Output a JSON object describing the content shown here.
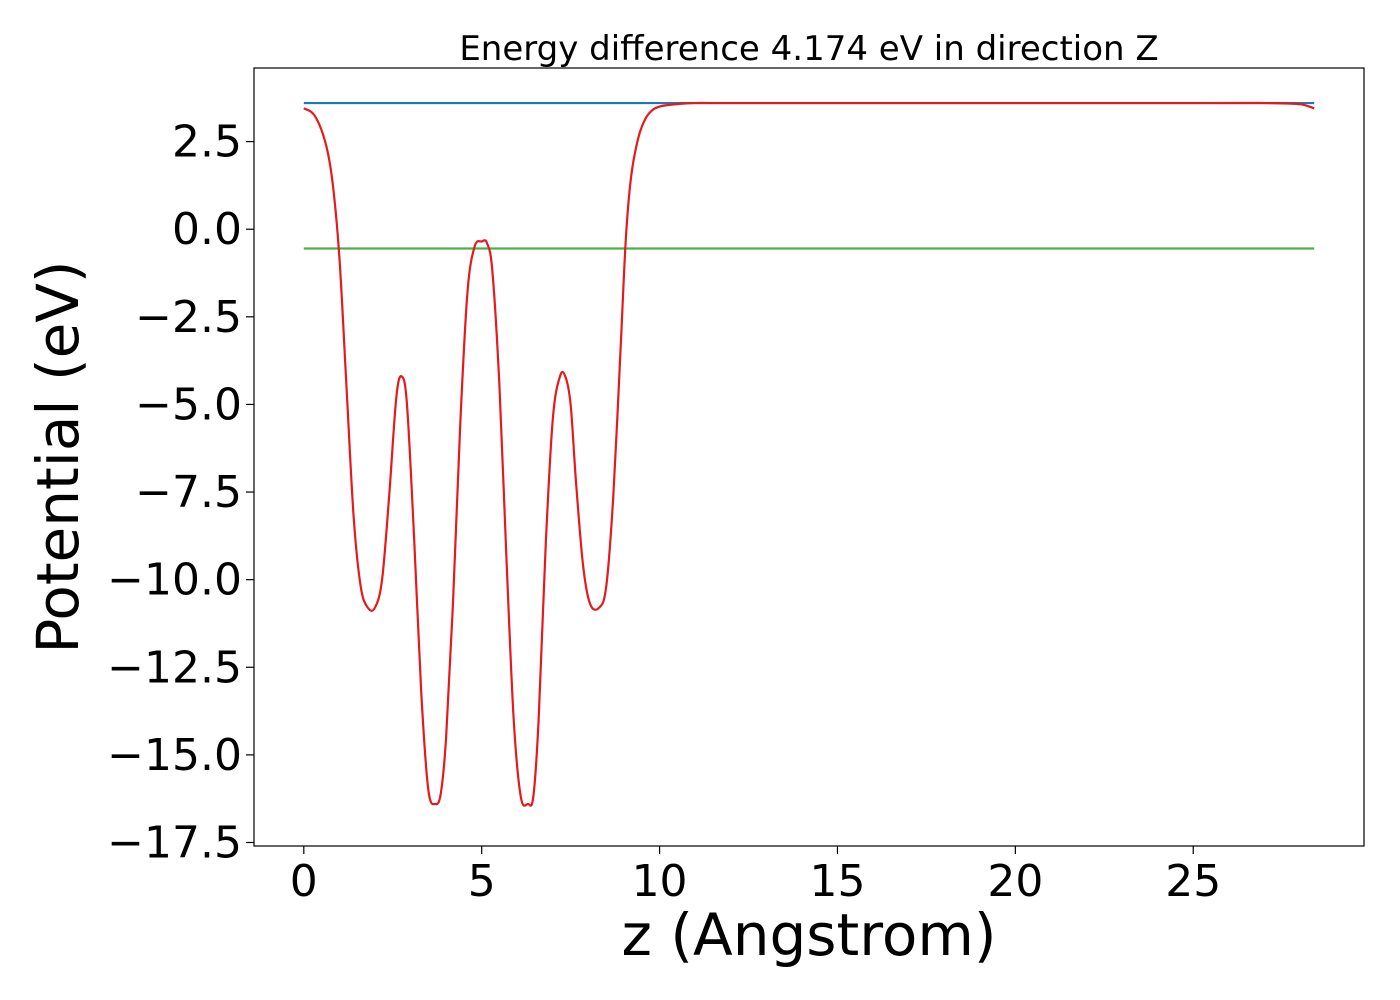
{
  "chart_data": {
    "type": "line",
    "title": "Energy difference 4.174 eV in direction Z",
    "xlabel": "z (Angstrom)",
    "ylabel": "Potential (eV)",
    "xlim": [
      -1.4,
      29.8
    ],
    "ylim": [
      -17.6,
      4.6
    ],
    "xticks": [
      0,
      5,
      10,
      15,
      20,
      25
    ],
    "xtick_labels": [
      "0",
      "5",
      "10",
      "15",
      "20",
      "25"
    ],
    "yticks": [
      2.5,
      0.0,
      -2.5,
      -5.0,
      -7.5,
      -10.0,
      -12.5,
      -15.0,
      -17.5
    ],
    "ytick_labels": [
      "2.5",
      "0.0",
      "−2.5",
      "−5.0",
      "−7.5",
      "−10.0",
      "−12.5",
      "−15.0",
      "−17.5"
    ],
    "grid": false,
    "series": [
      {
        "color": "#1f77b4",
        "x": [
          0,
          28.4
        ],
        "y": [
          3.6,
          3.6
        ]
      },
      {
        "color": "#4daf4a",
        "x": [
          0,
          28.4
        ],
        "y": [
          -0.55,
          -0.55
        ]
      },
      {
        "color": "#e41a1c",
        "x": [
          0,
          0.3,
          0.6,
          0.8,
          1.0,
          1.2,
          1.4,
          1.6,
          1.8,
          2.0,
          2.2,
          2.4,
          2.6,
          2.75,
          2.9,
          3.1,
          3.3,
          3.5,
          3.7,
          3.85,
          4.0,
          4.2,
          4.4,
          4.6,
          4.8,
          5.0,
          5.15,
          5.3,
          5.5,
          5.7,
          5.9,
          6.1,
          6.3,
          6.45,
          6.6,
          6.8,
          7.0,
          7.2,
          7.35,
          7.5,
          7.65,
          7.85,
          8.05,
          8.3,
          8.5,
          8.7,
          8.9,
          9.05,
          9.2,
          9.4,
          9.6,
          9.8,
          10.0,
          10.3,
          10.6,
          11.0,
          11.5,
          12.0,
          15.0,
          20.0,
          25.0,
          27.0,
          27.8,
          28.1,
          28.4
        ],
        "y": [
          3.45,
          3.25,
          2.5,
          1.4,
          -0.8,
          -4.5,
          -8.2,
          -10.2,
          -10.8,
          -10.8,
          -10.0,
          -7.6,
          -4.8,
          -4.2,
          -5.0,
          -8.8,
          -13.2,
          -16.0,
          -16.4,
          -16.1,
          -14.5,
          -10.5,
          -5.5,
          -1.8,
          -0.5,
          -0.35,
          -0.4,
          -1.2,
          -4.5,
          -9.5,
          -14.0,
          -16.2,
          -16.4,
          -16.2,
          -14.0,
          -9.0,
          -5.4,
          -4.2,
          -4.2,
          -5.0,
          -7.2,
          -9.6,
          -10.7,
          -10.8,
          -10.2,
          -7.6,
          -3.5,
          -0.3,
          1.5,
          2.6,
          3.15,
          3.4,
          3.5,
          3.55,
          3.58,
          3.6,
          3.6,
          3.6,
          3.6,
          3.6,
          3.6,
          3.6,
          3.58,
          3.55,
          3.45
        ]
      }
    ]
  }
}
